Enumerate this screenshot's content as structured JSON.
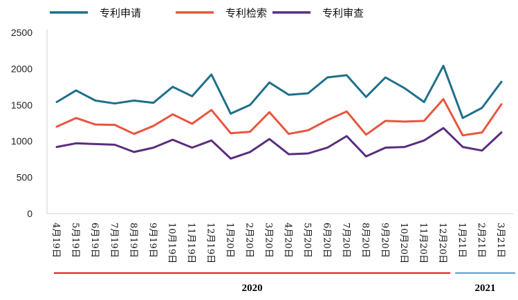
{
  "chart_data": {
    "type": "line",
    "categories": [
      "4月19日",
      "5月19日",
      "6月19日",
      "7月19日",
      "8月19日",
      "9月19日",
      "10月19日",
      "11月19日",
      "12月19日",
      "1月20日",
      "2月20日",
      "3月20日",
      "4月20日",
      "5月20日",
      "6月20日",
      "7月20日",
      "8月20日",
      "9月20日",
      "10月20日",
      "11月20日",
      "12月20日",
      "1月21日",
      "2月21日",
      "3月21日"
    ],
    "series": [
      {
        "name": "专利申请",
        "color": "#1f6f8b",
        "values": [
          1540,
          1700,
          1560,
          1520,
          1560,
          1530,
          1750,
          1620,
          1920,
          1380,
          1500,
          1810,
          1640,
          1660,
          1880,
          1910,
          1610,
          1880,
          1730,
          1540,
          2040,
          1320,
          1460,
          1820
        ]
      },
      {
        "name": "专利检索",
        "color": "#e8553e",
        "values": [
          1200,
          1320,
          1230,
          1225,
          1100,
          1210,
          1370,
          1240,
          1430,
          1110,
          1130,
          1400,
          1100,
          1150,
          1290,
          1410,
          1090,
          1280,
          1270,
          1280,
          1580,
          1080,
          1120,
          1510
        ]
      },
      {
        "name": "专利审查",
        "color": "#5b2d7e",
        "values": [
          920,
          970,
          960,
          950,
          850,
          910,
          1020,
          910,
          1010,
          760,
          850,
          1030,
          820,
          830,
          910,
          1070,
          790,
          910,
          920,
          1010,
          1180,
          920,
          870,
          1120
        ]
      }
    ],
    "yticks": [
      0,
      500,
      1000,
      1500,
      2000,
      2500
    ],
    "ylim": [
      0,
      2500
    ],
    "grid": false,
    "legend_position": "top",
    "year_groups": [
      {
        "label": "2020",
        "color": "#e31a1c",
        "start": 0,
        "end": 20
      },
      {
        "label": "2021",
        "color": "#5b9bd5",
        "start": 21,
        "end": 23
      }
    ]
  }
}
